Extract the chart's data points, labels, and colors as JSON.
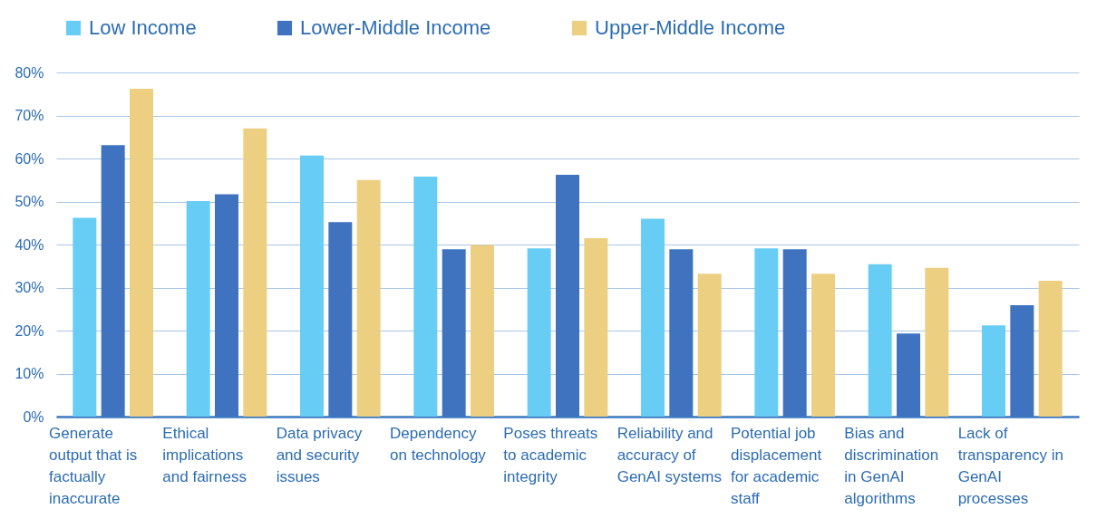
{
  "chart_data": {
    "type": "bar",
    "categories": [
      "Generate output that is factually inaccurate",
      "Ethical implications and fairness",
      "Data privacy and security issues",
      "Dependency on technology",
      "Poses threats to academic integrity",
      "Reliability and accuracy of GenAI systems",
      "Potential job displacement for academic staff",
      "Bias and discrimination in GenAI algorithms",
      "Lack of transparency in GenAI processes"
    ],
    "series": [
      {
        "name": "Low Income",
        "color": "#67cdf4",
        "values": [
          46.2,
          50.1,
          60.7,
          55.8,
          39.1,
          46,
          39.1,
          35.4,
          21.2
        ]
      },
      {
        "name": "Lower-Middle Income",
        "color": "#3f73bf",
        "values": [
          63.1,
          51.7,
          45.2,
          38.9,
          56.2,
          38.9,
          38.9,
          19.3,
          25.9
        ]
      },
      {
        "name": "Upper-Middle Income",
        "color": "#edcf82",
        "values": [
          76.2,
          67,
          55,
          39.9,
          41.5,
          33.2,
          33.2,
          34.6,
          31.6
        ]
      }
    ],
    "ylim": [
      0,
      80
    ],
    "yticks": [
      {
        "value": 0,
        "label": "0%"
      },
      {
        "value": 10,
        "label": "10%"
      },
      {
        "value": 20,
        "label": "20%"
      },
      {
        "value": 30,
        "label": "30%"
      },
      {
        "value": 40,
        "label": "40%"
      },
      {
        "value": 50,
        "label": "50%"
      },
      {
        "value": 60,
        "label": "60%"
      },
      {
        "value": 70,
        "label": "70%"
      },
      {
        "value": 80,
        "label": "80%"
      }
    ],
    "grid": "y",
    "legend": "top left"
  }
}
